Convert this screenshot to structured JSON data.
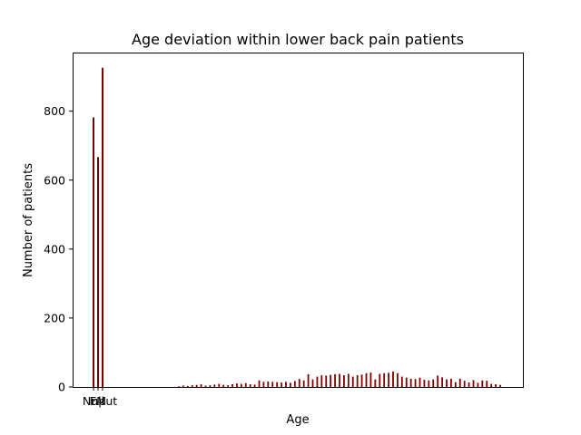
{
  "chart_data": {
    "type": "bar",
    "title": "Age deviation within lower back pain patients",
    "xlabel": "Age",
    "ylabel": "Number of patients",
    "ylim": [
      0,
      970
    ],
    "yticks": [
      0,
      200,
      400,
      600,
      800
    ],
    "color": "#7f0000",
    "grid": false,
    "categories": [
      "Null",
      "FM",
      "Input"
    ],
    "values": [
      782,
      667,
      926
    ],
    "x_tick_labels": [
      "Null",
      "FM",
      "Input"
    ],
    "age_distribution": [
      2,
      4,
      3,
      5,
      6,
      8,
      4,
      5,
      7,
      9,
      6,
      5,
      8,
      10,
      9,
      11,
      8,
      7,
      19,
      15,
      16,
      15,
      14,
      13,
      15,
      12,
      17,
      23,
      19,
      37,
      22,
      30,
      34,
      33,
      35,
      37,
      38,
      34,
      38,
      30,
      34,
      36,
      40,
      42,
      22,
      38,
      40,
      41,
      45,
      40,
      30,
      27,
      24,
      23,
      27,
      21,
      19,
      22,
      33,
      28,
      22,
      24,
      14,
      24,
      18,
      13,
      20,
      12,
      19,
      18,
      9,
      8,
      6
    ]
  }
}
